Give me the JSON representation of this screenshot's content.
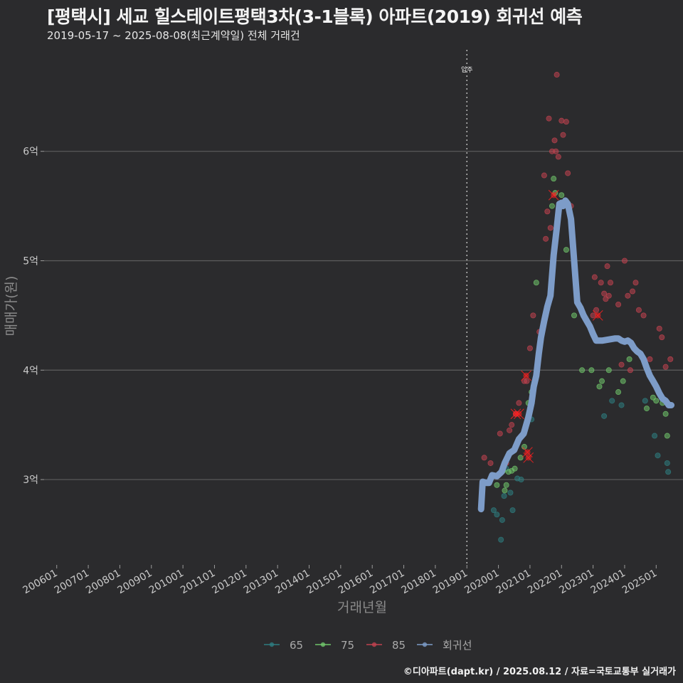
{
  "header": {
    "title": "[평택시] 세교 힐스테이트평택3차(3-1블록) 아파트(2019) 회귀선 예측",
    "subtitle": "2019-05-17 ~ 2025-08-08(최근계약일) 전체 거래건",
    "caption": "©디아파트(dapt.kr) / 2025.08.12 / 자료=국토교통부 실거래가"
  },
  "colors": {
    "background": "#2b2b2d",
    "grid": "#5e5e5e",
    "series_65": "#2e7d80",
    "series_75": "#6fc46a",
    "series_85": "#c0424f",
    "regression": "#7d9cc8",
    "highlight": "#ff2020"
  },
  "chart_data": {
    "type": "scatter",
    "xlabel": "거래년월",
    "ylabel": "매매가(원)",
    "xlim": [
      2005.6,
      2025.85
    ],
    "ylim": [
      2.22,
      6.98
    ],
    "x_ticks": [
      {
        "value": 2006.0,
        "label": "200601"
      },
      {
        "value": 2007.0,
        "label": "200701"
      },
      {
        "value": 2008.0,
        "label": "200801"
      },
      {
        "value": 2009.0,
        "label": "200901"
      },
      {
        "value": 2010.0,
        "label": "201001"
      },
      {
        "value": 2011.0,
        "label": "201101"
      },
      {
        "value": 2012.0,
        "label": "201201"
      },
      {
        "value": 2013.0,
        "label": "201301"
      },
      {
        "value": 2014.0,
        "label": "201401"
      },
      {
        "value": 2015.0,
        "label": "201501"
      },
      {
        "value": 2016.0,
        "label": "201601"
      },
      {
        "value": 2017.0,
        "label": "201701"
      },
      {
        "value": 2018.0,
        "label": "201801"
      },
      {
        "value": 2019.0,
        "label": "201901"
      },
      {
        "value": 2020.0,
        "label": "202001"
      },
      {
        "value": 2021.0,
        "label": "202101"
      },
      {
        "value": 2022.0,
        "label": "202201"
      },
      {
        "value": 2023.0,
        "label": "202301"
      },
      {
        "value": 2024.0,
        "label": "202401"
      },
      {
        "value": 2025.0,
        "label": "202501"
      }
    ],
    "y_ticks": [
      {
        "value": 3,
        "label": "3억"
      },
      {
        "value": 4,
        "label": "4억"
      },
      {
        "value": 5,
        "label": "5억"
      },
      {
        "value": 6,
        "label": "6억"
      }
    ],
    "annotation": {
      "x": 2019.0,
      "label": "입주"
    },
    "legend": [
      "65",
      "75",
      "85",
      "회귀선"
    ],
    "legend_position": "bottom",
    "series": [
      {
        "name": "65",
        "points": [
          [
            2019.85,
            2.72
          ],
          [
            2019.95,
            2.68
          ],
          [
            2020.08,
            2.45
          ],
          [
            2020.12,
            2.63
          ],
          [
            2020.18,
            2.85
          ],
          [
            2020.25,
            3.1
          ],
          [
            2020.38,
            2.88
          ],
          [
            2020.45,
            2.72
          ],
          [
            2020.6,
            3.01
          ],
          [
            2020.72,
            3.0
          ],
          [
            2021.05,
            3.55
          ],
          [
            2023.35,
            3.58
          ],
          [
            2023.6,
            3.72
          ],
          [
            2023.9,
            3.68
          ],
          [
            2024.65,
            3.72
          ],
          [
            2024.95,
            3.4
          ],
          [
            2025.05,
            3.22
          ],
          [
            2025.35,
            3.15
          ],
          [
            2025.38,
            3.07
          ]
        ]
      },
      {
        "name": "75",
        "points": [
          [
            2019.95,
            2.95
          ],
          [
            2020.15,
            3.08
          ],
          [
            2020.2,
            2.9
          ],
          [
            2020.25,
            2.95
          ],
          [
            2020.32,
            3.07
          ],
          [
            2020.42,
            3.08
          ],
          [
            2020.52,
            3.1
          ],
          [
            2020.7,
            3.2
          ],
          [
            2020.82,
            3.3
          ],
          [
            2020.88,
            3.5
          ],
          [
            2020.95,
            3.7
          ],
          [
            2021.05,
            3.8
          ],
          [
            2021.2,
            4.8
          ],
          [
            2021.5,
            4.5
          ],
          [
            2021.7,
            5.5
          ],
          [
            2021.75,
            5.75
          ],
          [
            2021.8,
            5.62
          ],
          [
            2022.0,
            5.6
          ],
          [
            2022.15,
            5.1
          ],
          [
            2022.4,
            4.5
          ],
          [
            2022.65,
            4.0
          ],
          [
            2022.95,
            4.0
          ],
          [
            2023.2,
            3.85
          ],
          [
            2023.28,
            3.9
          ],
          [
            2023.5,
            4.0
          ],
          [
            2023.8,
            3.8
          ],
          [
            2023.95,
            3.9
          ],
          [
            2024.15,
            4.1
          ],
          [
            2024.7,
            3.65
          ],
          [
            2024.9,
            3.75
          ],
          [
            2025.0,
            3.72
          ],
          [
            2025.2,
            3.7
          ],
          [
            2025.3,
            3.6
          ],
          [
            2025.35,
            3.4
          ]
        ]
      },
      {
        "name": "85",
        "points": [
          [
            2019.55,
            3.2
          ],
          [
            2019.75,
            3.15
          ],
          [
            2020.05,
            3.42
          ],
          [
            2020.15,
            3.1
          ],
          [
            2020.25,
            3.15
          ],
          [
            2020.35,
            3.45
          ],
          [
            2020.42,
            3.5
          ],
          [
            2020.55,
            3.6
          ],
          [
            2020.65,
            3.7
          ],
          [
            2020.82,
            3.9
          ],
          [
            2020.9,
            3.9
          ],
          [
            2021.0,
            4.2
          ],
          [
            2021.1,
            4.5
          ],
          [
            2021.3,
            4.35
          ],
          [
            2021.45,
            5.78
          ],
          [
            2021.5,
            5.2
          ],
          [
            2021.55,
            5.45
          ],
          [
            2021.6,
            6.3
          ],
          [
            2021.65,
            5.3
          ],
          [
            2021.7,
            6.0
          ],
          [
            2021.78,
            6.1
          ],
          [
            2021.82,
            6.0
          ],
          [
            2021.85,
            6.7
          ],
          [
            2021.9,
            5.95
          ],
          [
            2022.0,
            6.28
          ],
          [
            2022.05,
            6.15
          ],
          [
            2022.15,
            6.27
          ],
          [
            2022.2,
            5.8
          ],
          [
            2022.3,
            5.5
          ],
          [
            2023.0,
            4.5
          ],
          [
            2023.05,
            4.85
          ],
          [
            2023.1,
            4.55
          ],
          [
            2023.25,
            4.8
          ],
          [
            2023.35,
            4.7
          ],
          [
            2023.4,
            4.65
          ],
          [
            2023.45,
            4.95
          ],
          [
            2023.5,
            4.68
          ],
          [
            2023.55,
            4.8
          ],
          [
            2023.8,
            4.6
          ],
          [
            2023.9,
            4.05
          ],
          [
            2024.0,
            5.0
          ],
          [
            2024.1,
            4.68
          ],
          [
            2024.18,
            4.0
          ],
          [
            2024.25,
            4.72
          ],
          [
            2024.35,
            4.8
          ],
          [
            2024.45,
            4.55
          ],
          [
            2024.6,
            4.5
          ],
          [
            2024.8,
            4.1
          ],
          [
            2025.1,
            4.38
          ],
          [
            2025.18,
            4.3
          ],
          [
            2025.3,
            4.03
          ],
          [
            2025.45,
            4.1
          ]
        ]
      },
      {
        "name": "회귀선",
        "points": [
          [
            2019.45,
            2.73
          ],
          [
            2019.5,
            2.98
          ],
          [
            2019.62,
            2.97
          ],
          [
            2019.7,
            2.97
          ],
          [
            2019.8,
            3.04
          ],
          [
            2019.95,
            3.03
          ],
          [
            2020.1,
            3.07
          ],
          [
            2020.2,
            3.15
          ],
          [
            2020.35,
            3.24
          ],
          [
            2020.5,
            3.27
          ],
          [
            2020.65,
            3.37
          ],
          [
            2020.8,
            3.42
          ],
          [
            2020.95,
            3.57
          ],
          [
            2021.05,
            3.7
          ],
          [
            2021.12,
            3.85
          ],
          [
            2021.2,
            3.95
          ],
          [
            2021.28,
            4.15
          ],
          [
            2021.35,
            4.3
          ],
          [
            2021.45,
            4.45
          ],
          [
            2021.55,
            4.58
          ],
          [
            2021.65,
            4.68
          ],
          [
            2021.75,
            5.05
          ],
          [
            2021.85,
            5.3
          ],
          [
            2021.93,
            5.52
          ],
          [
            2022.0,
            5.53
          ],
          [
            2022.05,
            5.5
          ],
          [
            2022.12,
            5.55
          ],
          [
            2022.2,
            5.52
          ],
          [
            2022.3,
            5.38
          ],
          [
            2022.4,
            5.0
          ],
          [
            2022.5,
            4.62
          ],
          [
            2022.6,
            4.57
          ],
          [
            2022.7,
            4.5
          ],
          [
            2022.8,
            4.45
          ],
          [
            2022.9,
            4.4
          ],
          [
            2023.0,
            4.33
          ],
          [
            2023.1,
            4.27
          ],
          [
            2023.3,
            4.27
          ],
          [
            2023.5,
            4.28
          ],
          [
            2023.7,
            4.29
          ],
          [
            2023.8,
            4.29
          ],
          [
            2023.9,
            4.27
          ],
          [
            2024.0,
            4.26
          ],
          [
            2024.1,
            4.27
          ],
          [
            2024.2,
            4.25
          ],
          [
            2024.3,
            4.2
          ],
          [
            2024.4,
            4.17
          ],
          [
            2024.5,
            4.15
          ],
          [
            2024.6,
            4.1
          ],
          [
            2024.7,
            4.02
          ],
          [
            2024.8,
            3.95
          ],
          [
            2024.9,
            3.9
          ],
          [
            2025.0,
            3.85
          ],
          [
            2025.1,
            3.79
          ],
          [
            2025.2,
            3.74
          ],
          [
            2025.3,
            3.72
          ],
          [
            2025.4,
            3.68
          ],
          [
            2025.48,
            3.68
          ]
        ]
      }
    ],
    "highlighted_points": [
      [
        2020.55,
        3.6
      ],
      [
        2020.65,
        3.6
      ],
      [
        2020.88,
        3.95
      ],
      [
        2020.92,
        3.25
      ],
      [
        2020.95,
        3.2
      ],
      [
        2021.75,
        5.6
      ],
      [
        2023.15,
        4.5
      ]
    ]
  }
}
